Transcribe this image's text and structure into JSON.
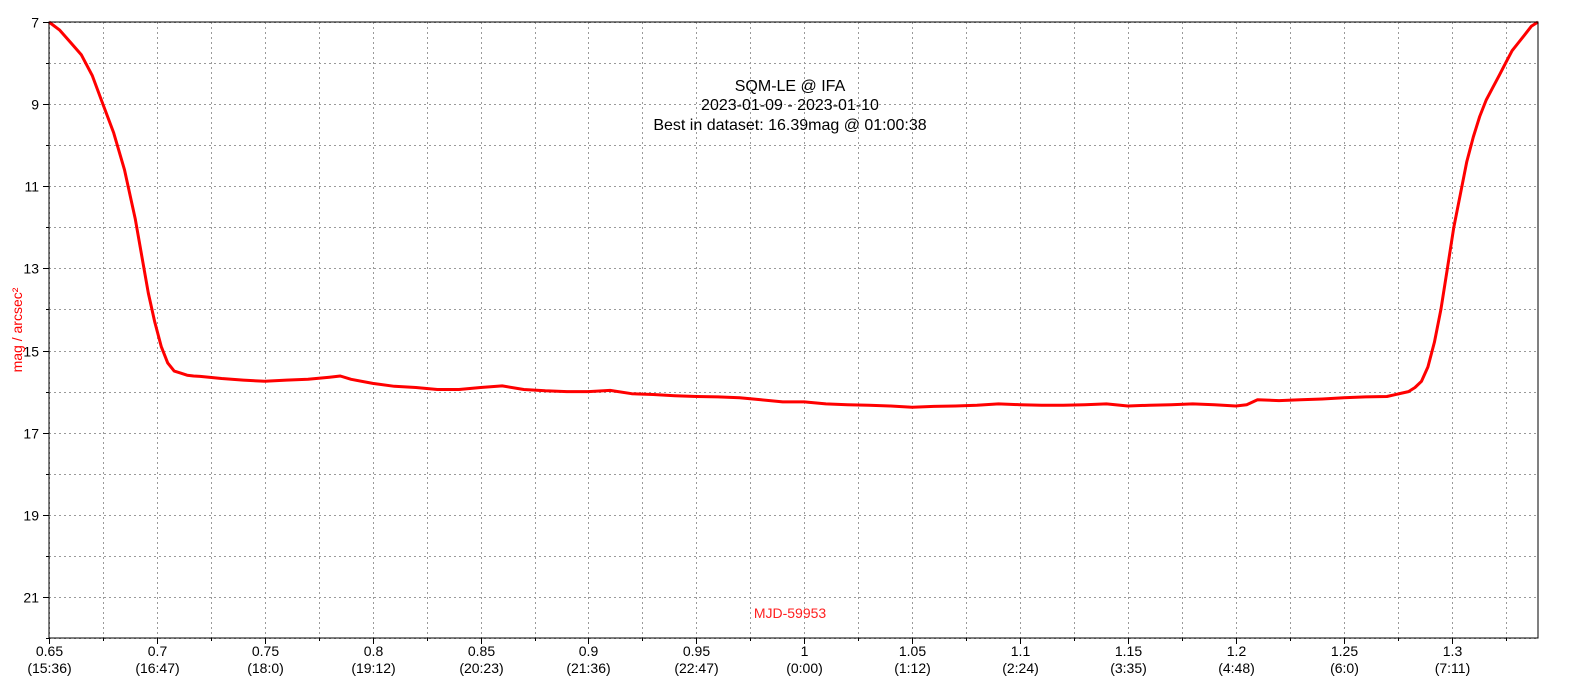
{
  "chart_data": {
    "type": "line",
    "title_lines": [
      "SQM-LE @ IFA",
      "2023-01-09 - 2023-01-10",
      "Best in dataset: 16.39mag @ 01:00:38"
    ],
    "xlabel": "MJD-59953",
    "ylabel": "mag / arcsec²",
    "xlim": [
      0.65,
      1.34
    ],
    "ylim": [
      7,
      22
    ],
    "y_inverted": false,
    "grid": true,
    "x_ticks": [
      {
        "value": 0.65,
        "label": "0.65",
        "sublabel": "(15:36)"
      },
      {
        "value": 0.7,
        "label": "0.7",
        "sublabel": "(16:47)"
      },
      {
        "value": 0.75,
        "label": "0.75",
        "sublabel": "(18:0)"
      },
      {
        "value": 0.8,
        "label": "0.8",
        "sublabel": "(19:12)"
      },
      {
        "value": 0.85,
        "label": "0.85",
        "sublabel": "(20:23)"
      },
      {
        "value": 0.9,
        "label": "0.9",
        "sublabel": "(21:36)"
      },
      {
        "value": 0.95,
        "label": "0.95",
        "sublabel": "(22:47)"
      },
      {
        "value": 1.0,
        "label": "1",
        "sublabel": "(0:00)"
      },
      {
        "value": 1.05,
        "label": "1.05",
        "sublabel": "(1:12)"
      },
      {
        "value": 1.1,
        "label": "1.1",
        "sublabel": "(2:24)"
      },
      {
        "value": 1.15,
        "label": "1.15",
        "sublabel": "(3:35)"
      },
      {
        "value": 1.2,
        "label": "1.2",
        "sublabel": "(4:48)"
      },
      {
        "value": 1.25,
        "label": "1.25",
        "sublabel": "(6:0)"
      },
      {
        "value": 1.3,
        "label": "1.3",
        "sublabel": "(7:11)"
      }
    ],
    "x_minor_ticks": [
      0.675,
      0.725,
      0.775,
      0.825,
      0.875,
      0.925,
      0.975,
      1.025,
      1.075,
      1.125,
      1.175,
      1.225,
      1.275,
      1.325
    ],
    "y_ticks": [
      {
        "value": 7,
        "label": "7"
      },
      {
        "value": 9,
        "label": "9"
      },
      {
        "value": 11,
        "label": "11"
      },
      {
        "value": 13,
        "label": "13"
      },
      {
        "value": 15,
        "label": "15"
      },
      {
        "value": 17,
        "label": "17"
      },
      {
        "value": 19,
        "label": "19"
      },
      {
        "value": 21,
        "label": "21"
      }
    ],
    "y_minor_ticks": [
      8,
      10,
      12,
      14,
      16,
      18,
      20,
      22
    ],
    "series": [
      {
        "color": "#ff0000",
        "x": [
          0.65,
          0.655,
          0.66,
          0.665,
          0.67,
          0.675,
          0.68,
          0.685,
          0.69,
          0.693,
          0.696,
          0.699,
          0.702,
          0.705,
          0.708,
          0.711,
          0.714,
          0.717,
          0.72,
          0.73,
          0.74,
          0.75,
          0.76,
          0.77,
          0.78,
          0.785,
          0.79,
          0.8,
          0.81,
          0.82,
          0.83,
          0.84,
          0.85,
          0.86,
          0.87,
          0.88,
          0.89,
          0.9,
          0.91,
          0.92,
          0.93,
          0.94,
          0.95,
          0.96,
          0.97,
          0.98,
          0.99,
          1.0,
          1.01,
          1.02,
          1.03,
          1.04,
          1.05,
          1.06,
          1.07,
          1.08,
          1.09,
          1.1,
          1.11,
          1.12,
          1.13,
          1.14,
          1.15,
          1.16,
          1.17,
          1.18,
          1.19,
          1.2,
          1.205,
          1.21,
          1.22,
          1.23,
          1.24,
          1.25,
          1.26,
          1.27,
          1.28,
          1.283,
          1.286,
          1.289,
          1.292,
          1.295,
          1.298,
          1.301,
          1.304,
          1.307,
          1.31,
          1.313,
          1.316,
          1.319,
          1.322,
          1.325,
          1.328,
          1.331,
          1.334,
          1.337,
          1.34
        ],
        "y": [
          7.0,
          7.2,
          7.5,
          7.8,
          8.3,
          9.0,
          9.7,
          10.6,
          11.8,
          12.7,
          13.6,
          14.3,
          14.9,
          15.3,
          15.5,
          15.55,
          15.6,
          15.62,
          15.63,
          15.68,
          15.72,
          15.75,
          15.72,
          15.7,
          15.65,
          15.62,
          15.7,
          15.8,
          15.87,
          15.9,
          15.95,
          15.95,
          15.9,
          15.86,
          15.95,
          15.98,
          16.0,
          16.0,
          15.97,
          16.05,
          16.07,
          16.1,
          16.12,
          16.13,
          16.15,
          16.2,
          16.25,
          16.25,
          16.3,
          16.32,
          16.33,
          16.35,
          16.38,
          16.36,
          16.35,
          16.33,
          16.3,
          16.32,
          16.33,
          16.33,
          16.32,
          16.3,
          16.35,
          16.33,
          16.32,
          16.3,
          16.32,
          16.35,
          16.32,
          16.2,
          16.22,
          16.2,
          16.18,
          16.15,
          16.13,
          16.12,
          16.0,
          15.9,
          15.75,
          15.4,
          14.8,
          14.0,
          13.0,
          12.0,
          11.2,
          10.4,
          9.8,
          9.3,
          8.9,
          8.6,
          8.3,
          8.0,
          7.7,
          7.5,
          7.3,
          7.1,
          7.0
        ]
      }
    ]
  }
}
